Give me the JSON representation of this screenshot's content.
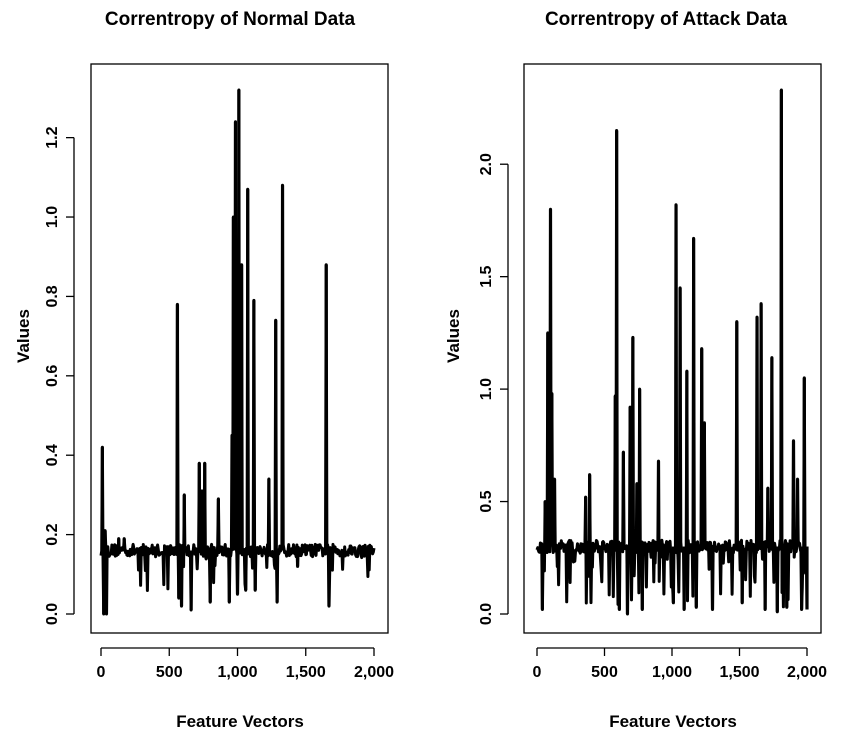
{
  "chart_data": [
    {
      "type": "line",
      "title": "Correntropy of Normal Data",
      "xlabel": "Feature Vectors",
      "ylabel": "Values",
      "xlim": [
        0,
        2000
      ],
      "ylim": [
        0.0,
        1.32
      ],
      "x_ticks": [
        0,
        500,
        1000,
        1500,
        2000
      ],
      "x_tick_labels": [
        "0",
        "500",
        "1,000",
        "1,500",
        "2,000"
      ],
      "y_ticks": [
        0.0,
        0.2,
        0.4,
        0.6,
        0.8,
        1.0,
        1.2
      ],
      "y_tick_labels": [
        "0.0",
        "0.2",
        "0.4",
        "0.6",
        "0.8",
        "1.0",
        "1.2"
      ],
      "grid": false,
      "legend": "none",
      "series_color": "#000000",
      "baseline": 0.16,
      "spikes": [
        {
          "x": 10,
          "y": 0.42
        },
        {
          "x": 20,
          "y": 0.0
        },
        {
          "x": 30,
          "y": 0.21
        },
        {
          "x": 40,
          "y": 0.0
        },
        {
          "x": 130,
          "y": 0.19
        },
        {
          "x": 170,
          "y": 0.19
        },
        {
          "x": 560,
          "y": 0.78
        },
        {
          "x": 570,
          "y": 0.04
        },
        {
          "x": 590,
          "y": 0.02
        },
        {
          "x": 610,
          "y": 0.3
        },
        {
          "x": 660,
          "y": 0.01
        },
        {
          "x": 720,
          "y": 0.38
        },
        {
          "x": 740,
          "y": 0.31
        },
        {
          "x": 760,
          "y": 0.38
        },
        {
          "x": 800,
          "y": 0.03
        },
        {
          "x": 860,
          "y": 0.29
        },
        {
          "x": 940,
          "y": 0.03
        },
        {
          "x": 960,
          "y": 0.45
        },
        {
          "x": 970,
          "y": 1.0
        },
        {
          "x": 985,
          "y": 1.24
        },
        {
          "x": 1000,
          "y": 0.05
        },
        {
          "x": 1010,
          "y": 1.32
        },
        {
          "x": 1030,
          "y": 0.88
        },
        {
          "x": 1060,
          "y": 0.06
        },
        {
          "x": 1075,
          "y": 1.07
        },
        {
          "x": 1120,
          "y": 0.79
        },
        {
          "x": 1130,
          "y": 0.06
        },
        {
          "x": 1230,
          "y": 0.34
        },
        {
          "x": 1280,
          "y": 0.74
        },
        {
          "x": 1290,
          "y": 0.03
        },
        {
          "x": 1330,
          "y": 1.08
        },
        {
          "x": 1440,
          "y": 0.12
        },
        {
          "x": 1650,
          "y": 0.88
        },
        {
          "x": 1670,
          "y": 0.02
        }
      ]
    },
    {
      "type": "line",
      "title": "Correntropy of Attack Data",
      "xlabel": "Feature Vectors",
      "ylabel": "Values",
      "xlim": [
        0,
        2000
      ],
      "ylim": [
        0.0,
        2.33
      ],
      "x_ticks": [
        0,
        500,
        1000,
        1500,
        2000
      ],
      "x_tick_labels": [
        "0",
        "500",
        "1,000",
        "1,500",
        "2,000"
      ],
      "y_ticks": [
        0.0,
        0.5,
        1.0,
        1.5,
        2.0
      ],
      "y_tick_labels": [
        "0.0",
        "0.5",
        "1.0",
        "1.5",
        "2.0"
      ],
      "grid": false,
      "legend": "none",
      "series_color": "#000000",
      "baseline": 0.3,
      "spikes": [
        {
          "x": 40,
          "y": 0.02
        },
        {
          "x": 60,
          "y": 0.5
        },
        {
          "x": 80,
          "y": 1.25
        },
        {
          "x": 100,
          "y": 1.8
        },
        {
          "x": 110,
          "y": 0.98
        },
        {
          "x": 130,
          "y": 0.6
        },
        {
          "x": 360,
          "y": 0.52
        },
        {
          "x": 390,
          "y": 0.62
        },
        {
          "x": 580,
          "y": 0.97
        },
        {
          "x": 590,
          "y": 2.15
        },
        {
          "x": 610,
          "y": 0.02
        },
        {
          "x": 640,
          "y": 0.72
        },
        {
          "x": 670,
          "y": 0.0
        },
        {
          "x": 690,
          "y": 0.92
        },
        {
          "x": 710,
          "y": 1.23
        },
        {
          "x": 740,
          "y": 0.58
        },
        {
          "x": 760,
          "y": 1.0
        },
        {
          "x": 780,
          "y": 0.02
        },
        {
          "x": 900,
          "y": 0.68
        },
        {
          "x": 1010,
          "y": 0.05
        },
        {
          "x": 1030,
          "y": 1.82
        },
        {
          "x": 1060,
          "y": 1.45
        },
        {
          "x": 1090,
          "y": 0.02
        },
        {
          "x": 1110,
          "y": 1.08
        },
        {
          "x": 1160,
          "y": 1.67
        },
        {
          "x": 1180,
          "y": 0.03
        },
        {
          "x": 1220,
          "y": 1.18
        },
        {
          "x": 1240,
          "y": 0.85
        },
        {
          "x": 1300,
          "y": 0.02
        },
        {
          "x": 1480,
          "y": 1.3
        },
        {
          "x": 1520,
          "y": 0.05
        },
        {
          "x": 1630,
          "y": 1.32
        },
        {
          "x": 1660,
          "y": 1.38
        },
        {
          "x": 1690,
          "y": 0.02
        },
        {
          "x": 1710,
          "y": 0.56
        },
        {
          "x": 1740,
          "y": 1.14
        },
        {
          "x": 1780,
          "y": 0.01
        },
        {
          "x": 1810,
          "y": 2.33
        },
        {
          "x": 1850,
          "y": 0.03
        },
        {
          "x": 1900,
          "y": 0.77
        },
        {
          "x": 1930,
          "y": 0.6
        },
        {
          "x": 1960,
          "y": 0.02
        },
        {
          "x": 1980,
          "y": 1.05
        },
        {
          "x": 2000,
          "y": 0.02
        }
      ]
    }
  ]
}
